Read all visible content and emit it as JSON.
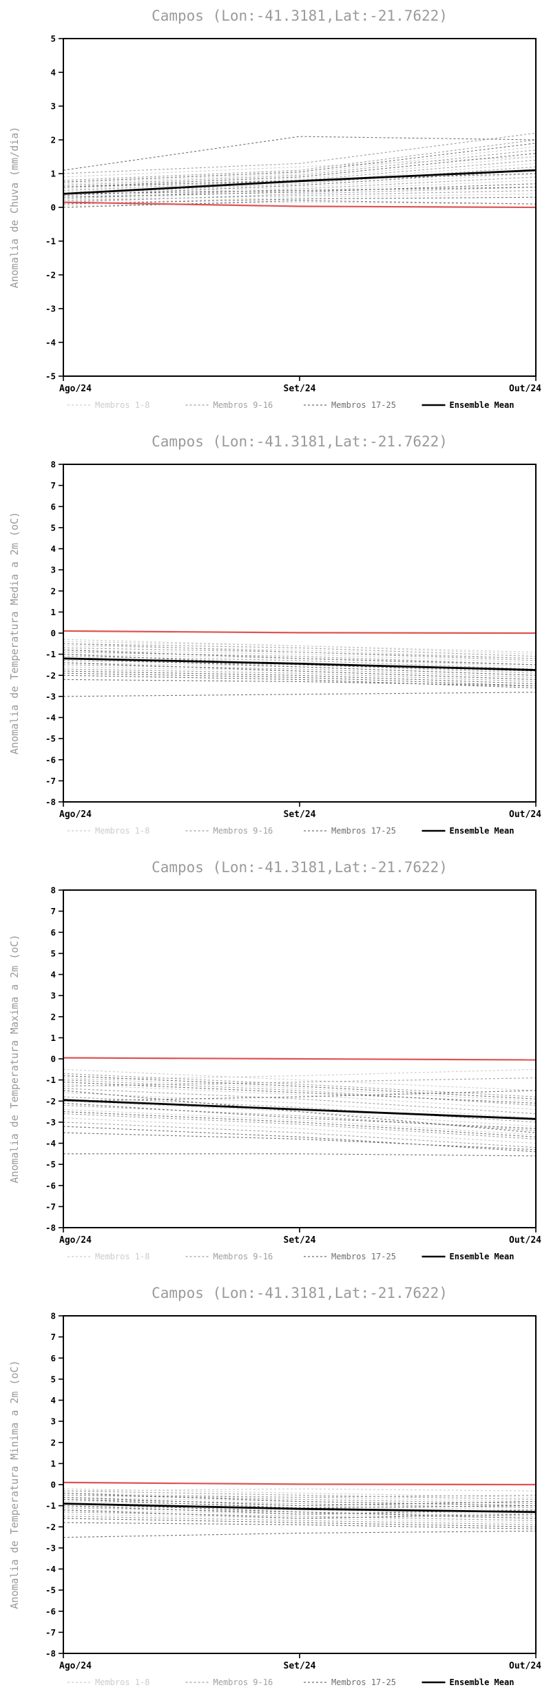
{
  "page": {
    "background": "#ffffff"
  },
  "chart_data": [
    {
      "type": "line",
      "title": "Campos (Lon:-41.3181,Lat:-21.7622)",
      "ylabel": "Anomalia de Chuva (mm/dia)",
      "ylim": [
        -5,
        5
      ],
      "ytick_step": 1,
      "x_labels": [
        "Ago/24",
        "Set/24",
        "Out/24"
      ],
      "grid": false,
      "zero_line": {
        "color": "#e05252",
        "values": [
          0.15,
          0.03,
          0.0
        ]
      },
      "ensemble_mean": [
        0.4,
        0.78,
        1.1
      ],
      "groups": [
        {
          "name": "Membros 1-8",
          "color": "#cccccc",
          "members": [
            [
              0.1,
              0.3,
              0.4
            ],
            [
              0.2,
              0.5,
              0.8
            ],
            [
              0.3,
              0.6,
              1.0
            ],
            [
              0.45,
              0.75,
              1.3
            ],
            [
              0.55,
              0.85,
              1.5
            ],
            [
              0.7,
              1.0,
              1.8
            ],
            [
              0.9,
              1.2,
              1.5
            ],
            [
              0.05,
              0.15,
              0.1
            ]
          ]
        },
        {
          "name": "Membros 9-16",
          "color": "#9f9f9f",
          "members": [
            [
              0.15,
              0.4,
              0.6
            ],
            [
              0.25,
              0.55,
              0.9
            ],
            [
              0.4,
              0.7,
              1.2
            ],
            [
              0.5,
              0.8,
              1.4
            ],
            [
              0.65,
              0.95,
              1.7
            ],
            [
              0.8,
              1.1,
              2.0
            ],
            [
              1.0,
              1.3,
              2.2
            ],
            [
              0.2,
              0.35,
              0.5
            ]
          ]
        },
        {
          "name": "Membros 17-25",
          "color": "#6e6e6e",
          "members": [
            [
              1.1,
              2.1,
              2.0
            ],
            [
              0.0,
              0.2,
              0.1
            ],
            [
              0.1,
              0.25,
              0.3
            ],
            [
              0.3,
              0.45,
              0.7
            ],
            [
              0.6,
              0.9,
              1.6
            ],
            [
              0.75,
              1.05,
              1.9
            ],
            [
              0.35,
              0.65,
              1.1
            ],
            [
              0.6,
              0.8,
              1.0
            ],
            [
              0.4,
              0.5,
              0.6
            ]
          ]
        }
      ],
      "legend": [
        {
          "label": "Membros 1-8",
          "color": "#cccccc",
          "style": "dashed"
        },
        {
          "label": "Membros 9-16",
          "color": "#9f9f9f",
          "style": "dashed"
        },
        {
          "label": "Membros 17-25",
          "color": "#6e6e6e",
          "style": "dashed"
        },
        {
          "label": "Ensemble Mean",
          "color": "#000000",
          "style": "solid"
        }
      ]
    },
    {
      "type": "line",
      "title": "Campos (Lon:-41.3181,Lat:-21.7622)",
      "ylabel": "Anomalia de Temperatura Media a 2m (oC)",
      "ylim": [
        -8,
        8
      ],
      "ytick_step": 1,
      "x_labels": [
        "Ago/24",
        "Set/24",
        "Out/24"
      ],
      "grid": false,
      "zero_line": {
        "color": "#e05252",
        "values": [
          0.1,
          0.02,
          0.0
        ]
      },
      "ensemble_mean": [
        -1.2,
        -1.45,
        -1.75
      ],
      "groups": [
        {
          "name": "Membros 1-8",
          "color": "#cccccc",
          "members": [
            [
              -0.4,
              -0.6,
              -1.0
            ],
            [
              -0.6,
              -0.8,
              -1.2
            ],
            [
              -0.8,
              -1.0,
              -1.4
            ],
            [
              -1.0,
              -1.2,
              -1.6
            ],
            [
              -1.2,
              -1.4,
              -1.8
            ],
            [
              -1.4,
              -1.6,
              -2.0
            ],
            [
              -1.6,
              -1.8,
              -2.2
            ],
            [
              -0.3,
              -0.6,
              -0.9
            ]
          ]
        },
        {
          "name": "Membros 9-16",
          "color": "#9f9f9f",
          "members": [
            [
              -0.5,
              -0.7,
              -1.1
            ],
            [
              -0.7,
              -0.9,
              -1.3
            ],
            [
              -0.9,
              -1.1,
              -1.5
            ],
            [
              -1.1,
              -1.3,
              -1.7
            ],
            [
              -1.3,
              -1.5,
              -1.9
            ],
            [
              -1.5,
              -1.7,
              -2.1
            ],
            [
              -1.7,
              -1.9,
              -2.3
            ],
            [
              -0.5,
              -0.9,
              -1.2
            ]
          ]
        },
        {
          "name": "Membros 17-25",
          "color": "#6e6e6e",
          "members": [
            [
              -1.8,
              -2.0,
              -2.4
            ],
            [
              -1.9,
              -2.1,
              -2.5
            ],
            [
              -2.0,
              -2.2,
              -2.6
            ],
            [
              -3.0,
              -2.9,
              -2.8
            ],
            [
              -1.0,
              -1.5,
              -1.8
            ],
            [
              -1.2,
              -1.6,
              -2.0
            ],
            [
              -1.4,
              -1.8,
              -2.2
            ],
            [
              -2.2,
              -2.3,
              -2.5
            ],
            [
              -0.8,
              -1.2,
              -1.5
            ]
          ]
        }
      ],
      "legend": [
        {
          "label": "Membros 1-8",
          "color": "#cccccc",
          "style": "dashed"
        },
        {
          "label": "Membros 9-16",
          "color": "#9f9f9f",
          "style": "dashed"
        },
        {
          "label": "Membros 17-25",
          "color": "#6e6e6e",
          "style": "dashed"
        },
        {
          "label": "Ensemble Mean",
          "color": "#000000",
          "style": "solid"
        }
      ]
    },
    {
      "type": "line",
      "title": "Campos (Lon:-41.3181,Lat:-21.7622)",
      "ylabel": "Anomalia de Temperatura Maxima a 2m (oC)",
      "ylim": [
        -8,
        8
      ],
      "ytick_step": 1,
      "x_labels": [
        "Ago/24",
        "Set/24",
        "Out/24"
      ],
      "grid": false,
      "zero_line": {
        "color": "#e05252",
        "values": [
          0.05,
          0.0,
          -0.05
        ]
      },
      "ensemble_mean": [
        -1.95,
        -2.4,
        -2.85
      ],
      "groups": [
        {
          "name": "Membros 1-8",
          "color": "#cccccc",
          "members": [
            [
              -0.5,
              -1.0,
              -1.5
            ],
            [
              -0.9,
              -1.4,
              -2.0
            ],
            [
              -1.2,
              -1.7,
              -2.4
            ],
            [
              -1.6,
              -2.1,
              -2.8
            ],
            [
              -2.0,
              -2.5,
              -3.2
            ],
            [
              -2.4,
              -2.9,
              -3.6
            ],
            [
              -2.8,
              -3.3,
              -4.0
            ],
            [
              -1.0,
              -0.8,
              -0.5
            ]
          ]
        },
        {
          "name": "Membros 9-16",
          "color": "#9f9f9f",
          "members": [
            [
              -0.7,
              -1.2,
              -1.8
            ],
            [
              -1.0,
              -1.5,
              -2.2
            ],
            [
              -1.4,
              -1.9,
              -2.6
            ],
            [
              -1.8,
              -2.3,
              -3.0
            ],
            [
              -2.2,
              -2.7,
              -3.4
            ],
            [
              -2.6,
              -3.1,
              -3.8
            ],
            [
              -3.0,
              -3.5,
              -4.2
            ],
            [
              -1.3,
              -1.1,
              -0.9
            ]
          ]
        },
        {
          "name": "Membros 17-25",
          "color": "#6e6e6e",
          "members": [
            [
              -3.2,
              -3.7,
              -4.4
            ],
            [
              -4.5,
              -4.5,
              -4.6
            ],
            [
              -2.0,
              -1.8,
              -1.5
            ],
            [
              -3.5,
              -3.8,
              -4.3
            ],
            [
              -1.5,
              -2.5,
              -3.5
            ],
            [
              -2.1,
              -2.8,
              -3.3
            ],
            [
              -1.1,
              -1.6,
              -2.1
            ],
            [
              -2.5,
              -3.0,
              -3.7
            ],
            [
              -0.8,
              -1.3,
              -1.9
            ]
          ]
        }
      ],
      "legend": [
        {
          "label": "Membros 1-8",
          "color": "#cccccc",
          "style": "dashed"
        },
        {
          "label": "Membros 9-16",
          "color": "#9f9f9f",
          "style": "dashed"
        },
        {
          "label": "Membros 17-25",
          "color": "#6e6e6e",
          "style": "dashed"
        },
        {
          "label": "Ensemble Mean",
          "color": "#000000",
          "style": "solid"
        }
      ]
    },
    {
      "type": "line",
      "title": "Campos (Lon:-41.3181,Lat:-21.7622)",
      "ylabel": "Anomalia de Temperatura Minima a 2m (oC)",
      "ylim": [
        -8,
        8
      ],
      "ytick_step": 1,
      "x_labels": [
        "Ago/24",
        "Set/24",
        "Out/24"
      ],
      "grid": false,
      "zero_line": {
        "color": "#e05252",
        "values": [
          0.1,
          0.02,
          0.0
        ]
      },
      "ensemble_mean": [
        -0.9,
        -1.15,
        -1.3
      ],
      "groups": [
        {
          "name": "Membros 1-8",
          "color": "#cccccc",
          "members": [
            [
              -0.2,
              -0.4,
              -0.6
            ],
            [
              -0.4,
              -0.6,
              -0.8
            ],
            [
              -0.6,
              -0.8,
              -1.0
            ],
            [
              -0.8,
              -1.0,
              -1.2
            ],
            [
              -1.0,
              -1.2,
              -1.4
            ],
            [
              -1.2,
              -1.4,
              -1.6
            ],
            [
              -1.4,
              -1.6,
              -1.8
            ],
            [
              -0.3,
              -0.2,
              -0.3
            ]
          ]
        },
        {
          "name": "Membros 9-16",
          "color": "#9f9f9f",
          "members": [
            [
              -0.3,
              -0.5,
              -0.7
            ],
            [
              -0.5,
              -0.7,
              -0.9
            ],
            [
              -0.7,
              -0.9,
              -1.1
            ],
            [
              -0.9,
              -1.1,
              -1.3
            ],
            [
              -1.1,
              -1.3,
              -1.5
            ],
            [
              -1.3,
              -1.5,
              -1.7
            ],
            [
              -1.5,
              -1.7,
              -1.9
            ],
            [
              -0.5,
              -0.6,
              -0.5
            ]
          ]
        },
        {
          "name": "Membros 17-25",
          "color": "#6e6e6e",
          "members": [
            [
              -1.6,
              -1.8,
              -2.0
            ],
            [
              -2.5,
              -2.3,
              -2.2
            ],
            [
              -0.7,
              -1.1,
              -1.0
            ],
            [
              -1.8,
              -1.9,
              -2.1
            ],
            [
              -1.0,
              -1.4,
              -1.2
            ],
            [
              -0.6,
              -1.0,
              -0.8
            ],
            [
              -1.2,
              -1.6,
              -1.4
            ],
            [
              -0.4,
              -0.8,
              -1.0
            ],
            [
              -0.9,
              -1.3,
              -1.6
            ]
          ]
        }
      ],
      "legend": [
        {
          "label": "Membros 1-8",
          "color": "#cccccc",
          "style": "dashed"
        },
        {
          "label": "Membros 9-16",
          "color": "#9f9f9f",
          "style": "dashed"
        },
        {
          "label": "Membros 17-25",
          "color": "#6e6e6e",
          "style": "dashed"
        },
        {
          "label": "Ensemble Mean",
          "color": "#000000",
          "style": "solid"
        }
      ]
    }
  ]
}
